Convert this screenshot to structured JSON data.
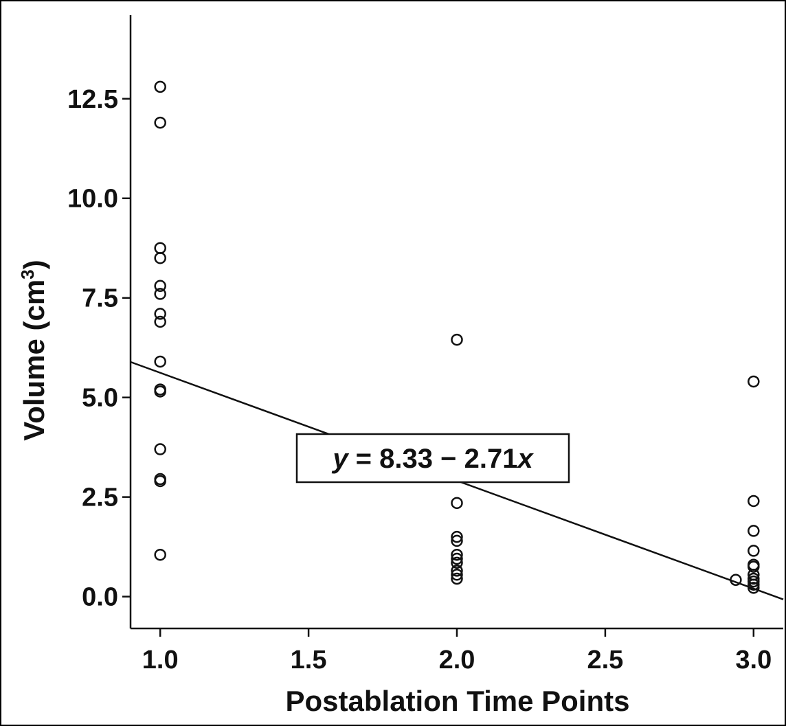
{
  "chart_data": {
    "type": "scatter",
    "title": "",
    "xlabel": "Postablation Time Points",
    "ylabel": "Volume (cm",
    "ylabel_sup": "3",
    "ylabel_close": ")",
    "xlim": [
      0.9,
      3.1
    ],
    "ylim": [
      -0.8,
      14.6
    ],
    "x_ticks": [
      1.0,
      1.5,
      2.0,
      2.5,
      3.0
    ],
    "x_tick_labels": [
      "1.0",
      "1.5",
      "2.0",
      "2.5",
      "3.0"
    ],
    "y_ticks": [
      0.0,
      2.5,
      5.0,
      7.5,
      10.0,
      12.5
    ],
    "y_tick_labels": [
      "0.0",
      "2.5",
      "5.0",
      "7.5",
      "10.0",
      "12.5"
    ],
    "grid": false,
    "points": [
      {
        "x": 1.0,
        "y": 12.8
      },
      {
        "x": 1.0,
        "y": 11.9
      },
      {
        "x": 1.0,
        "y": 8.75
      },
      {
        "x": 1.0,
        "y": 8.5
      },
      {
        "x": 1.0,
        "y": 7.8
      },
      {
        "x": 1.0,
        "y": 7.6
      },
      {
        "x": 1.0,
        "y": 7.1
      },
      {
        "x": 1.0,
        "y": 6.9
      },
      {
        "x": 1.0,
        "y": 5.9
      },
      {
        "x": 1.0,
        "y": 5.2
      },
      {
        "x": 1.0,
        "y": 5.15
      },
      {
        "x": 1.0,
        "y": 3.7
      },
      {
        "x": 1.0,
        "y": 2.95
      },
      {
        "x": 1.0,
        "y": 2.9
      },
      {
        "x": 1.0,
        "y": 1.05
      },
      {
        "x": 2.0,
        "y": 6.45
      },
      {
        "x": 2.0,
        "y": 2.35
      },
      {
        "x": 2.0,
        "y": 1.5
      },
      {
        "x": 2.0,
        "y": 1.4
      },
      {
        "x": 2.0,
        "y": 1.05
      },
      {
        "x": 2.0,
        "y": 0.95
      },
      {
        "x": 2.0,
        "y": 0.85
      },
      {
        "x": 2.0,
        "y": 0.65
      },
      {
        "x": 2.0,
        "y": 0.55
      },
      {
        "x": 2.0,
        "y": 0.45
      },
      {
        "x": 3.0,
        "y": 5.4
      },
      {
        "x": 3.0,
        "y": 2.4
      },
      {
        "x": 3.0,
        "y": 1.65
      },
      {
        "x": 3.0,
        "y": 1.15
      },
      {
        "x": 3.0,
        "y": 0.8
      },
      {
        "x": 3.0,
        "y": 0.75
      },
      {
        "x": 3.0,
        "y": 0.55
      },
      {
        "x": 3.0,
        "y": 0.45
      },
      {
        "x": 3.0,
        "y": 0.38
      },
      {
        "x": 3.0,
        "y": 0.3
      },
      {
        "x": 3.0,
        "y": 0.22
      },
      {
        "x": 2.94,
        "y": 0.42
      }
    ],
    "fit_line": {
      "intercept": 8.33,
      "slope": -2.71
    },
    "equation": {
      "y": "y",
      "middle": " = 8.33 − 2.71",
      "x": "x"
    },
    "colors": {
      "ink": "#111111",
      "background": "#ffffff"
    }
  }
}
